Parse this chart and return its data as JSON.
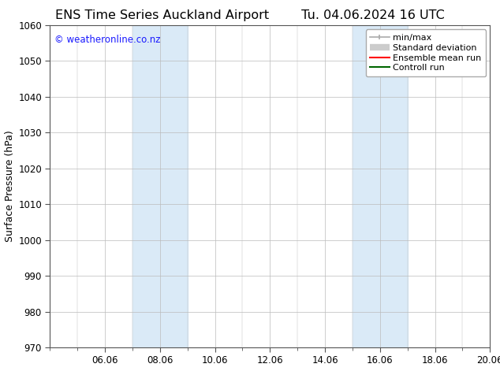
{
  "title_left": "ENS Time Series Auckland Airport",
  "title_right": "Tu. 04.06.2024 16 UTC",
  "ylabel": "Surface Pressure (hPa)",
  "ylim": [
    970,
    1060
  ],
  "yticks": [
    970,
    980,
    990,
    1000,
    1010,
    1020,
    1030,
    1040,
    1050,
    1060
  ],
  "xlim": [
    0,
    16
  ],
  "xtick_labels": [
    "06.06",
    "08.06",
    "10.06",
    "12.06",
    "14.06",
    "16.06",
    "18.06",
    "20.06"
  ],
  "xtick_positions": [
    2.0,
    4.0,
    6.0,
    8.0,
    10.0,
    12.0,
    14.0,
    16.0
  ],
  "shaded_regions": [
    {
      "xstart": 3.0,
      "xend": 5.0,
      "color": "#daeaf7"
    },
    {
      "xstart": 11.0,
      "xend": 13.0,
      "color": "#daeaf7"
    }
  ],
  "watermark_text": "© weatheronline.co.nz",
  "watermark_color": "#1a1aff",
  "background_color": "#ffffff",
  "plot_bg_color": "#ffffff",
  "grid_color": "#bbbbbb",
  "spine_color": "#555555",
  "legend_items": [
    {
      "label": "min/max",
      "color": "#aaaaaa",
      "lw": 1.2
    },
    {
      "label": "Standard deviation",
      "color": "#cccccc",
      "lw": 6
    },
    {
      "label": "Ensemble mean run",
      "color": "#ff0000",
      "lw": 1.5
    },
    {
      "label": "Controll run",
      "color": "#006600",
      "lw": 1.5
    }
  ],
  "title_fontsize": 11.5,
  "axis_label_fontsize": 9,
  "tick_fontsize": 8.5,
  "watermark_fontsize": 8.5,
  "legend_fontsize": 8
}
